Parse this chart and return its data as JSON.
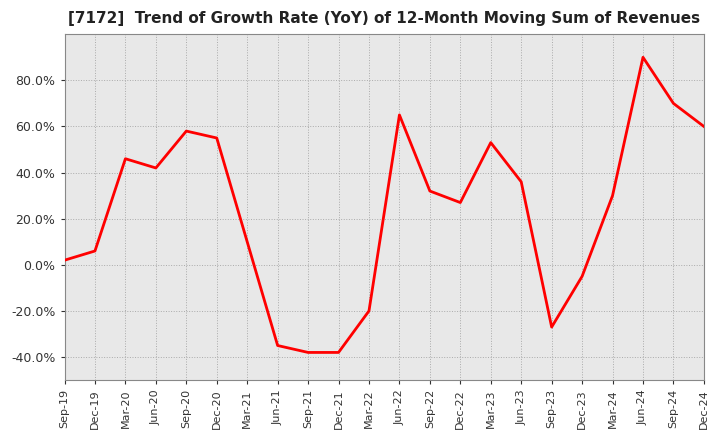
{
  "title": "[7172]  Trend of Growth Rate (YoY) of 12-Month Moving Sum of Revenues",
  "title_fontsize": 11,
  "line_color": "#ff0000",
  "plot_bg_color": "#e8e8e8",
  "outer_bg_color": "#ffffff",
  "grid_color": "#aaaaaa",
  "border_color": "#888888",
  "ylim": [
    -0.5,
    1.0
  ],
  "yticks": [
    -0.4,
    -0.2,
    0.0,
    0.2,
    0.4,
    0.6,
    0.8
  ],
  "dates": [
    "Sep-19",
    "Dec-19",
    "Mar-20",
    "Jun-20",
    "Sep-20",
    "Dec-20",
    "Mar-21",
    "Jun-21",
    "Sep-21",
    "Dec-21",
    "Mar-22",
    "Jun-22",
    "Sep-22",
    "Dec-22",
    "Mar-23",
    "Jun-23",
    "Sep-23",
    "Dec-23",
    "Mar-24",
    "Jun-24",
    "Sep-24",
    "Dec-24"
  ],
  "values": [
    0.02,
    0.06,
    0.46,
    0.42,
    0.58,
    0.55,
    0.1,
    -0.35,
    -0.38,
    -0.38,
    -0.2,
    0.65,
    0.32,
    0.27,
    0.53,
    0.36,
    -0.27,
    -0.05,
    0.3,
    0.9,
    0.7,
    0.6
  ]
}
